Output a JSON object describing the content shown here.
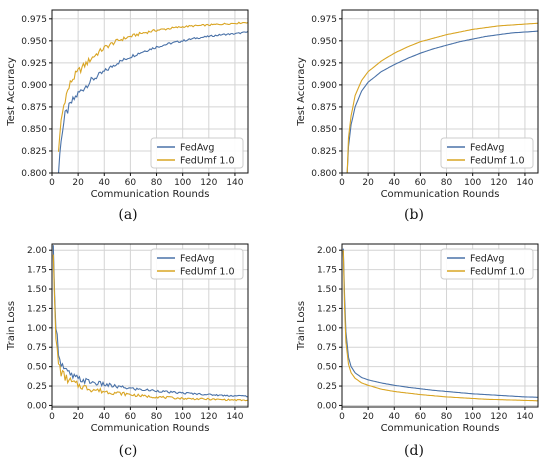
{
  "colors": {
    "fedavg": "#4a72a8",
    "fedumf": "#d9a524"
  },
  "chart_data": [
    {
      "type": "line",
      "caption": "(a)",
      "xlabel": "Communication Rounds",
      "ylabel": "Test Accuracy",
      "xlim": [
        0,
        150
      ],
      "ylim": [
        0.8,
        0.985
      ],
      "xticks": [
        0,
        20,
        40,
        60,
        80,
        100,
        120,
        140
      ],
      "yticks": [
        0.8,
        0.825,
        0.85,
        0.875,
        0.9,
        0.925,
        0.95,
        0.975
      ],
      "ytick_labels": [
        "0.800",
        "0.825",
        "0.850",
        "0.875",
        "0.900",
        "0.925",
        "0.950",
        "0.975"
      ],
      "grid": true,
      "legend_position": "lower-right",
      "noisy": true,
      "x": [
        5,
        7,
        10,
        15,
        20,
        30,
        40,
        50,
        60,
        70,
        80,
        90,
        100,
        110,
        120,
        130,
        140,
        150
      ],
      "series": [
        {
          "name": "FedAvg",
          "color_key": "fedavg",
          "values": [
            0.8,
            0.84,
            0.865,
            0.88,
            0.89,
            0.905,
            0.915,
            0.925,
            0.932,
            0.938,
            0.943,
            0.947,
            0.95,
            0.953,
            0.955,
            0.957,
            0.958,
            0.96
          ]
        },
        {
          "name": "FedUmf 1.0",
          "color_key": "fedumf",
          "values": [
            0.82,
            0.86,
            0.885,
            0.905,
            0.915,
            0.93,
            0.942,
            0.95,
            0.955,
            0.959,
            0.962,
            0.964,
            0.966,
            0.967,
            0.968,
            0.969,
            0.97,
            0.971
          ]
        }
      ]
    },
    {
      "type": "line",
      "caption": "(b)",
      "xlabel": "Communication Rounds",
      "ylabel": "Test Accuracy",
      "xlim": [
        0,
        150
      ],
      "ylim": [
        0.8,
        0.985
      ],
      "xticks": [
        0,
        20,
        40,
        60,
        80,
        100,
        120,
        140
      ],
      "yticks": [
        0.8,
        0.825,
        0.85,
        0.875,
        0.9,
        0.925,
        0.95,
        0.975
      ],
      "ytick_labels": [
        "0.800",
        "0.825",
        "0.850",
        "0.875",
        "0.900",
        "0.925",
        "0.950",
        "0.975"
      ],
      "grid": true,
      "legend_position": "lower-right",
      "noisy": false,
      "x": [
        4,
        5,
        7,
        10,
        15,
        20,
        30,
        40,
        50,
        60,
        70,
        80,
        90,
        100,
        110,
        120,
        130,
        140,
        150
      ],
      "series": [
        {
          "name": "FedAvg",
          "color_key": "fedavg",
          "values": [
            0.8,
            0.83,
            0.855,
            0.875,
            0.893,
            0.903,
            0.915,
            0.923,
            0.93,
            0.936,
            0.941,
            0.945,
            0.949,
            0.952,
            0.955,
            0.957,
            0.959,
            0.96,
            0.961
          ]
        },
        {
          "name": "FedUmf 1.0",
          "color_key": "fedumf",
          "values": [
            0.8,
            0.84,
            0.865,
            0.888,
            0.905,
            0.915,
            0.927,
            0.936,
            0.943,
            0.949,
            0.953,
            0.957,
            0.96,
            0.963,
            0.965,
            0.967,
            0.968,
            0.969,
            0.97
          ]
        }
      ]
    },
    {
      "type": "line",
      "caption": "(c)",
      "xlabel": "Communication Rounds",
      "ylabel": "Train Loss",
      "xlim": [
        0,
        150
      ],
      "ylim": [
        -0.02,
        2.08
      ],
      "xticks": [
        0,
        20,
        40,
        60,
        80,
        100,
        120,
        140
      ],
      "yticks": [
        0,
        0.25,
        0.5,
        0.75,
        1.0,
        1.25,
        1.5,
        1.75,
        2.0
      ],
      "ytick_labels": [
        "0.00",
        "0.25",
        "0.50",
        "0.75",
        "1.00",
        "1.25",
        "1.50",
        "1.75",
        "2.00"
      ],
      "grid": true,
      "legend_position": "upper-right",
      "noisy": true,
      "x": [
        1,
        2,
        3,
        5,
        7,
        10,
        15,
        20,
        30,
        40,
        50,
        60,
        70,
        80,
        90,
        100,
        110,
        120,
        130,
        140,
        150
      ],
      "series": [
        {
          "name": "FedAvg",
          "color_key": "fedavg",
          "values": [
            2.02,
            1.5,
            1.05,
            0.7,
            0.55,
            0.45,
            0.38,
            0.34,
            0.3,
            0.27,
            0.24,
            0.22,
            0.2,
            0.19,
            0.17,
            0.16,
            0.15,
            0.14,
            0.13,
            0.125,
            0.12
          ]
        },
        {
          "name": "FedUmf 1.0",
          "color_key": "fedumf",
          "values": [
            2.0,
            1.3,
            0.85,
            0.55,
            0.43,
            0.36,
            0.3,
            0.26,
            0.21,
            0.18,
            0.16,
            0.14,
            0.12,
            0.11,
            0.1,
            0.09,
            0.085,
            0.08,
            0.075,
            0.07,
            0.065
          ]
        }
      ]
    },
    {
      "type": "line",
      "caption": "(d)",
      "xlabel": "Communication Rounds",
      "ylabel": "Train Loss",
      "xlim": [
        0,
        150
      ],
      "ylim": [
        -0.02,
        2.08
      ],
      "xticks": [
        0,
        20,
        40,
        60,
        80,
        100,
        120,
        140
      ],
      "yticks": [
        0,
        0.25,
        0.5,
        0.75,
        1.0,
        1.25,
        1.5,
        1.75,
        2.0
      ],
      "ytick_labels": [
        "0.00",
        "0.25",
        "0.50",
        "0.75",
        "1.00",
        "1.25",
        "1.50",
        "1.75",
        "2.00"
      ],
      "grid": true,
      "legend_position": "upper-right",
      "noisy": false,
      "x": [
        1,
        2,
        3,
        5,
        7,
        10,
        15,
        20,
        30,
        40,
        50,
        60,
        70,
        80,
        90,
        100,
        110,
        120,
        130,
        140,
        150
      ],
      "series": [
        {
          "name": "FedAvg",
          "color_key": "fedavg",
          "values": [
            2.02,
            1.4,
            0.95,
            0.62,
            0.5,
            0.42,
            0.36,
            0.33,
            0.29,
            0.26,
            0.235,
            0.215,
            0.195,
            0.18,
            0.165,
            0.15,
            0.14,
            0.13,
            0.12,
            0.11,
            0.105
          ]
        },
        {
          "name": "FedUmf 1.0",
          "color_key": "fedumf",
          "values": [
            2.0,
            1.25,
            0.82,
            0.53,
            0.42,
            0.35,
            0.29,
            0.26,
            0.21,
            0.18,
            0.16,
            0.14,
            0.125,
            0.11,
            0.1,
            0.09,
            0.08,
            0.075,
            0.07,
            0.065,
            0.06
          ]
        }
      ]
    }
  ]
}
